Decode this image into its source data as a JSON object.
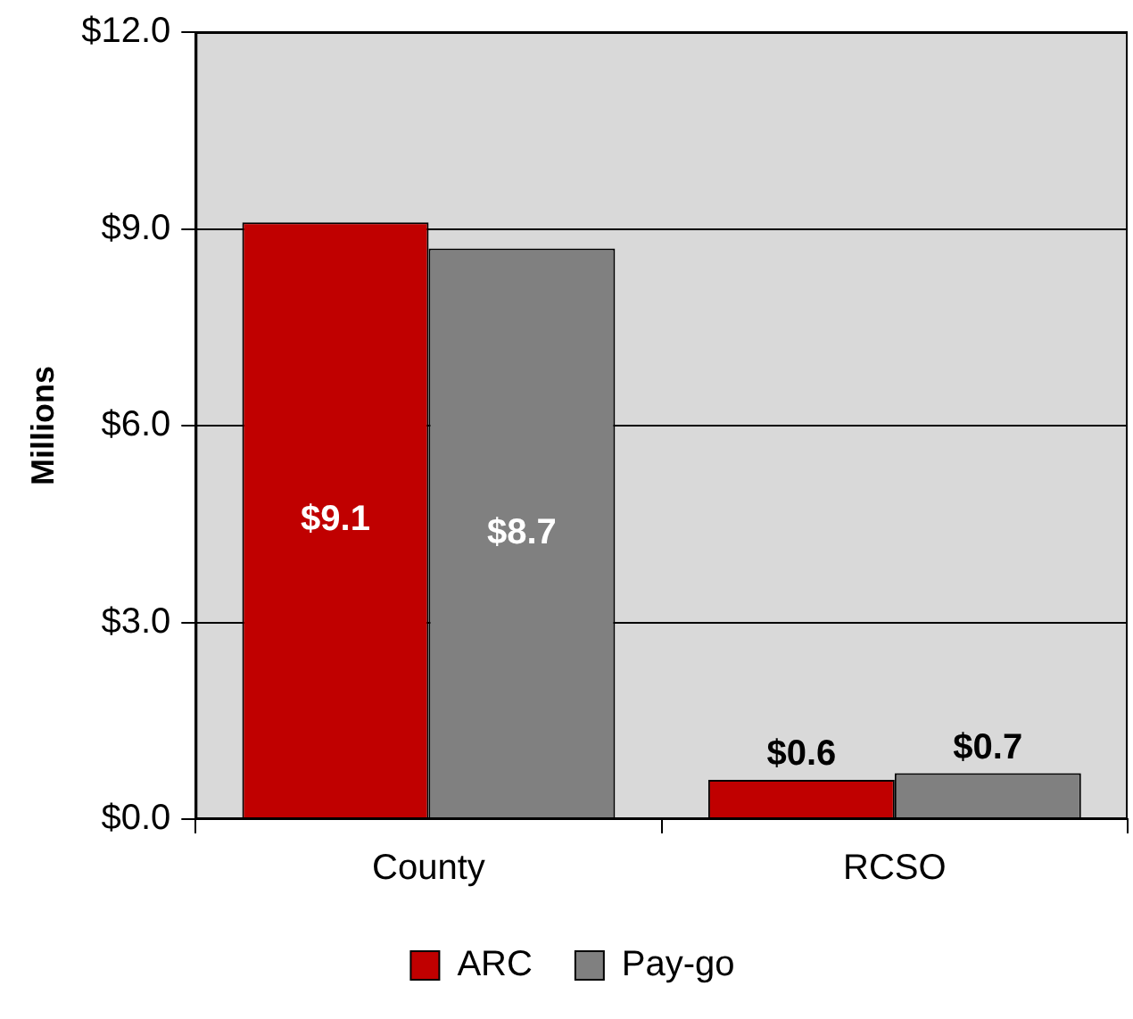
{
  "chart_data": {
    "type": "bar",
    "ylabel": "Millions",
    "categories": [
      "County",
      "RCSO"
    ],
    "series": [
      {
        "name": "ARC",
        "color": "#c00000",
        "values": [
          9.1,
          0.6
        ],
        "value_labels": [
          "$9.1",
          "$0.6"
        ]
      },
      {
        "name": "Pay-go",
        "color": "#808080",
        "values": [
          8.7,
          0.7
        ],
        "value_labels": [
          "$8.7",
          "$0.7"
        ]
      }
    ],
    "ylim": [
      0,
      12
    ],
    "yticks": [
      {
        "value": 0,
        "label": "$0.0"
      },
      {
        "value": 3,
        "label": "$3.0"
      },
      {
        "value": 6,
        "label": "$6.0"
      },
      {
        "value": 9,
        "label": "$9.0"
      },
      {
        "value": 12,
        "label": "$12.0"
      }
    ],
    "grid": "y",
    "legend": "bottom"
  }
}
